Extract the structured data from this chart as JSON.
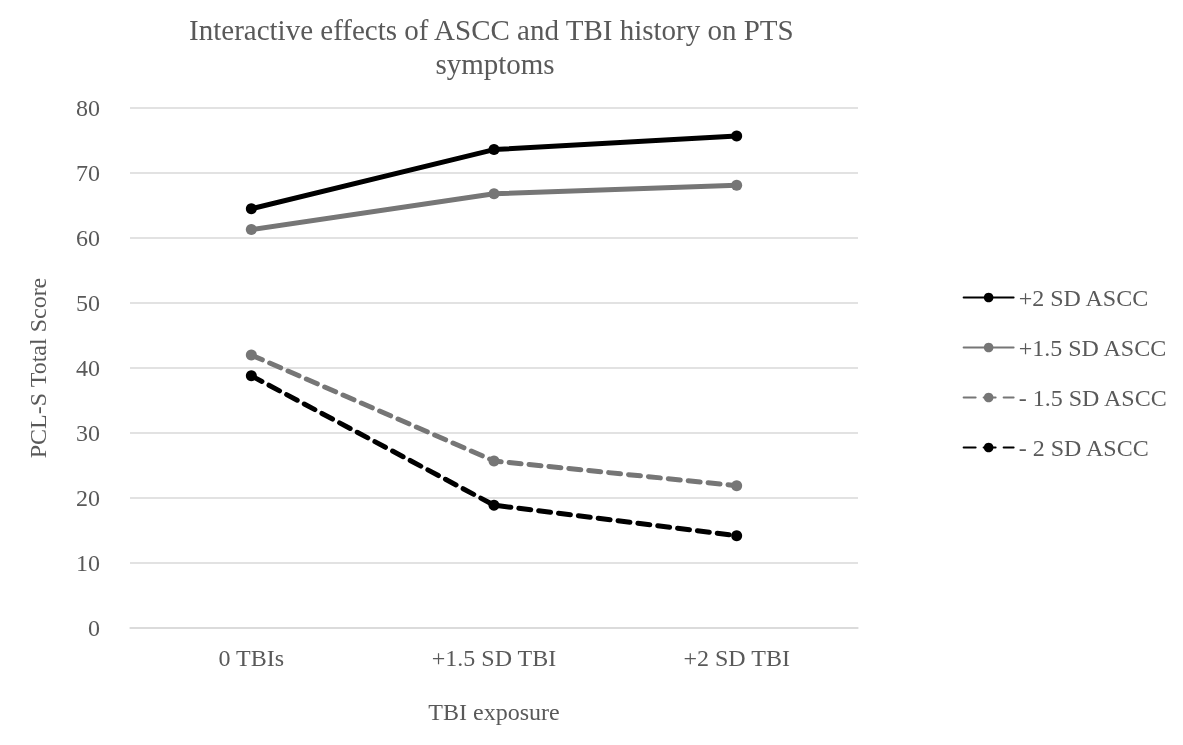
{
  "chart_data": {
    "type": "line",
    "title": "Interactive effects of ASCC and TBI history on PTS symptoms",
    "xlabel": "TBI exposure",
    "ylabel": "PCL-S Total Score",
    "categories": [
      "0 TBIs",
      "+1.5 SD TBI",
      "+2 SD TBI"
    ],
    "series": [
      {
        "name": "+2 SD ASCC",
        "color": "#000000",
        "line_style": "solid",
        "values": [
          64.5,
          73.6,
          75.7
        ]
      },
      {
        "name": "+1.5 SD ASCC",
        "color": "#767676",
        "line_style": "solid",
        "values": [
          61.3,
          66.8,
          68.1
        ]
      },
      {
        "name": "- 1.5 SD ASCC",
        "color": "#767676",
        "line_style": "dashed",
        "values": [
          42.0,
          25.7,
          21.9
        ]
      },
      {
        "name": "- 2 SD ASCC",
        "color": "#000000",
        "line_style": "dashed",
        "values": [
          38.8,
          18.9,
          14.2
        ]
      }
    ],
    "ylim": [
      0,
      80
    ],
    "yticks": [
      0,
      10,
      20,
      30,
      40,
      50,
      60,
      70,
      80
    ],
    "grid": "y",
    "legend": "right",
    "marker": "circle"
  }
}
